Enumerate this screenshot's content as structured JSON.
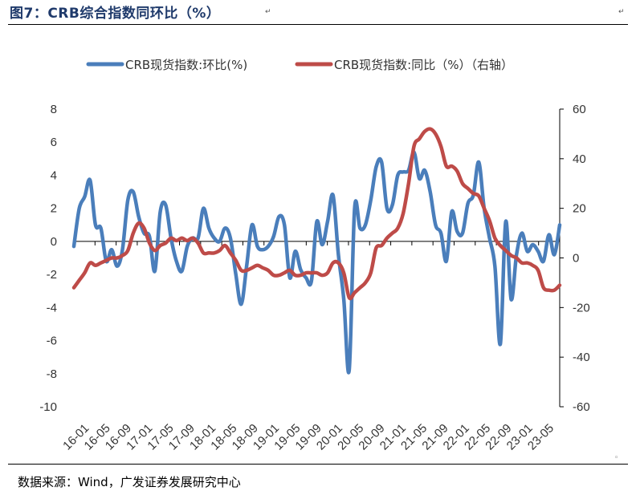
{
  "header": {
    "title": "图7：CRB综合指数同环比（%）",
    "return_mark": "↵"
  },
  "footer": {
    "source": "数据来源：Wind，广发证券发展研究中心"
  },
  "colors": {
    "series_mom": "#4a7ebb",
    "series_yoy": "#be4b48"
  },
  "chart_data": {
    "type": "line",
    "title": "",
    "left_axis": {
      "min": -10,
      "max": 8,
      "step": 2,
      "ticks": [
        "8",
        "6",
        "4",
        "2",
        "0",
        "-2",
        "-4",
        "-6",
        "-8",
        "-10"
      ]
    },
    "right_axis": {
      "min": -60,
      "max": 60,
      "step": 20,
      "ticks": [
        "60",
        "40",
        "20",
        "0",
        "-20",
        "-40",
        "-60"
      ]
    },
    "x_tick_labels": [
      "16-01",
      "16-05",
      "16-09",
      "17-01",
      "17-05",
      "17-09",
      "18-01",
      "18-05",
      "18-09",
      "19-01",
      "19-05",
      "19-09",
      "20-01",
      "20-05",
      "20-09",
      "21-01",
      "21-05",
      "21-09",
      "22-01",
      "22-05",
      "22-09",
      "23-01",
      "23-05"
    ],
    "legend": {
      "placement": "top"
    },
    "series": [
      {
        "name": "CRB现货指数:环比(%)",
        "axis": "left",
        "color": "#4a7ebb",
        "values": [
          -0.3,
          2.0,
          2.7,
          3.7,
          1.0,
          0.8,
          -1.2,
          -0.5,
          -1.5,
          -0.5,
          2.5,
          3.0,
          1.5,
          0.5,
          0.3,
          -1.8,
          1.8,
          2.2,
          0.2,
          -1.2,
          -1.8,
          -0.3,
          0.2,
          0.2,
          2.0,
          0.8,
          0.2,
          0.0,
          0.8,
          0.2,
          -2.0,
          -3.8,
          -1.5,
          1.0,
          -0.3,
          -0.5,
          -0.3,
          0.3,
          1.5,
          1.0,
          -2.2,
          -0.6,
          -1.7,
          -2.2,
          -2.4,
          1.2,
          -0.2,
          1.2,
          2.8,
          -0.8,
          -3.5,
          -7.8,
          2.0,
          0.8,
          1.0,
          2.5,
          4.5,
          4.8,
          2.0,
          2.2,
          4.0,
          4.2,
          4.3,
          5.4,
          3.8,
          4.3,
          3.0,
          1.0,
          0.5,
          -1.2,
          1.8,
          0.6,
          0.5,
          2.3,
          2.8,
          4.8,
          2.0,
          0.2,
          -1.5,
          -6.2,
          1.2,
          -3.5,
          -0.8,
          0.5,
          -0.6,
          -0.2,
          -0.6,
          -1.2,
          0.4,
          -0.8,
          1.0
        ]
      },
      {
        "name": "CRB现货指数:同比（%）（右轴）",
        "axis": "right",
        "color": "#be4b48",
        "values": [
          -12,
          -9,
          -6,
          -2,
          -3,
          -2,
          -1,
          0,
          0,
          1,
          3,
          10,
          14,
          12,
          6,
          3,
          5,
          6,
          8,
          7,
          8,
          7,
          8,
          6,
          2,
          2,
          2,
          3,
          5,
          2,
          -1,
          -5,
          -5,
          -4,
          -3,
          -4,
          -5,
          -7,
          -7,
          -6,
          -5,
          -7,
          -7,
          -6,
          -6,
          -6,
          -7,
          -6,
          -2,
          -2,
          -6,
          -16,
          -14,
          -12,
          -10,
          -6,
          4,
          5,
          8,
          10,
          12,
          18,
          30,
          45,
          48,
          51,
          52,
          50,
          45,
          37,
          37,
          35,
          30,
          28,
          26,
          25,
          20,
          15,
          8,
          5,
          3,
          1,
          0,
          -2,
          -2,
          -3,
          -5,
          -12,
          -13,
          -13,
          -11
        ]
      }
    ]
  }
}
